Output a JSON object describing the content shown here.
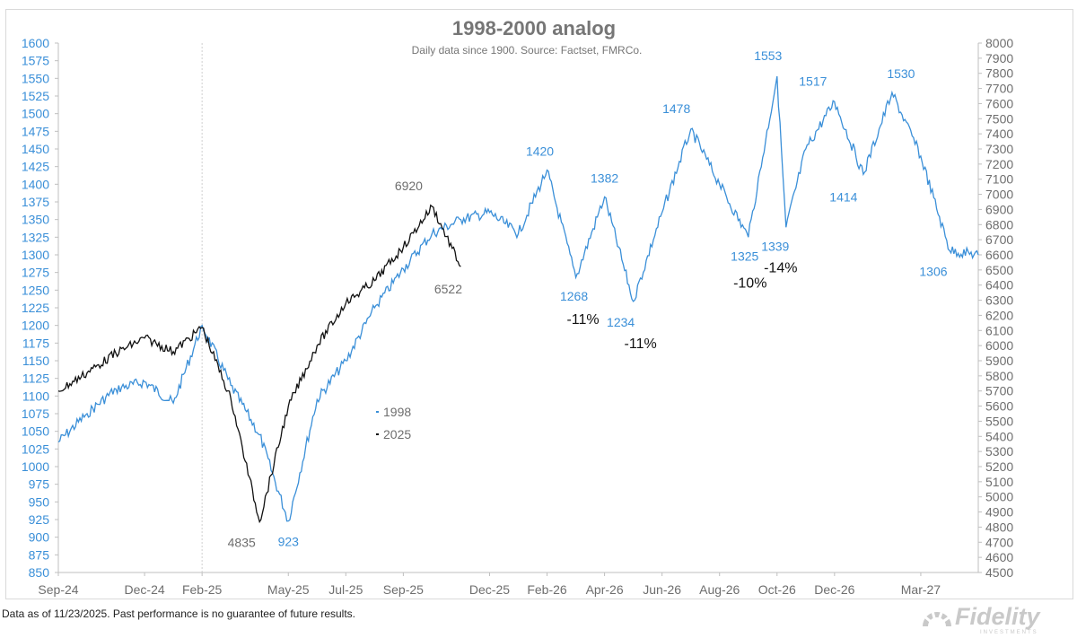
{
  "chart_data": {
    "type": "line",
    "title": "1998-2000 analog",
    "subtitle": "Daily data since 1900.  Source: Factset, FMRCo.",
    "x_ticks": [
      "Sep-24",
      "Dec-24",
      "Feb-25",
      "May-25",
      "Jul-25",
      "Sep-25",
      "Dec-25",
      "Feb-26",
      "Apr-26",
      "Jun-26",
      "Aug-26",
      "Oct-26",
      "Dec-26",
      "Mar-27"
    ],
    "x_range": [
      "Sep-24",
      "May-27"
    ],
    "y_left": {
      "range": [
        850,
        1600
      ],
      "ticks": [
        850,
        875,
        900,
        925,
        950,
        975,
        1000,
        1025,
        1050,
        1075,
        1100,
        1125,
        1150,
        1175,
        1200,
        1225,
        1250,
        1275,
        1300,
        1325,
        1350,
        1375,
        1400,
        1425,
        1450,
        1475,
        1500,
        1525,
        1550,
        1575,
        1600
      ],
      "color": "#3a8fd8"
    },
    "y_right": {
      "range": [
        4500,
        8000
      ],
      "ticks": [
        4500,
        4600,
        4700,
        4800,
        4900,
        5000,
        5100,
        5200,
        5300,
        5400,
        5500,
        5600,
        5700,
        5800,
        5900,
        6000,
        6100,
        6200,
        6300,
        6400,
        6500,
        6600,
        6700,
        6800,
        6900,
        7000,
        7100,
        7200,
        7300,
        7400,
        7500,
        7600,
        7700,
        7800,
        7900,
        8000
      ],
      "color": "#6e6e6e"
    },
    "grid": false,
    "vertical_marker": {
      "x": "Feb-25",
      "style": "dotted"
    },
    "legend": {
      "placement": "center-left",
      "entries": [
        "1998",
        "2025"
      ]
    },
    "series": [
      {
        "name": "1998",
        "axis": "left",
        "color": "#3a8fd8",
        "points": [
          [
            "Sep-24",
            1035
          ],
          [
            "Oct-24",
            1075
          ],
          [
            "Nov-24",
            1110
          ],
          [
            "Dec-24",
            1120
          ],
          [
            "Jan-25",
            1090
          ],
          [
            "Feb-25",
            1200
          ],
          [
            "Mar-25",
            1115
          ],
          [
            "Apr-25",
            1045
          ],
          [
            "May-25",
            923
          ],
          [
            "Jun-25",
            1095
          ],
          [
            "Jul-25",
            1150
          ],
          [
            "Aug-25",
            1225
          ],
          [
            "Sep-25",
            1280
          ],
          [
            "Oct-25",
            1330
          ],
          [
            "Nov-25",
            1350
          ],
          [
            "Dec-25",
            1360
          ],
          [
            "Jan-26",
            1330
          ],
          [
            "Feb-26",
            1420
          ],
          [
            "Mar-26",
            1268
          ],
          [
            "Apr-26",
            1382
          ],
          [
            "May-26",
            1234
          ],
          [
            "Jun-26",
            1360
          ],
          [
            "Jul-26",
            1478
          ],
          [
            "Aug-26",
            1400
          ],
          [
            "Sep-26",
            1325
          ],
          [
            "Oct-26",
            1553
          ],
          [
            "Oct-26b",
            1339
          ],
          [
            "Nov-26",
            1450
          ],
          [
            "Dec-26",
            1517
          ],
          [
            "Jan-27",
            1414
          ],
          [
            "Feb-27",
            1530
          ],
          [
            "Mar-27",
            1440
          ],
          [
            "Apr-27",
            1306
          ],
          [
            "May-27",
            1300
          ]
        ]
      },
      {
        "name": "2025",
        "axis": "right",
        "color": "#111111",
        "points": [
          [
            "Sep-24",
            5700
          ],
          [
            "Oct-24",
            5820
          ],
          [
            "Nov-24",
            5950
          ],
          [
            "Dec-24",
            6050
          ],
          [
            "Jan-25",
            5960
          ],
          [
            "Feb-25",
            6120
          ],
          [
            "Mar-25",
            5650
          ],
          [
            "Apr-25",
            4835
          ],
          [
            "May-25",
            5600
          ],
          [
            "Jun-25",
            6000
          ],
          [
            "Jul-25",
            6280
          ],
          [
            "Aug-25",
            6430
          ],
          [
            "Sep-25",
            6650
          ],
          [
            "Oct-25",
            6920
          ],
          [
            "Nov-25",
            6522
          ]
        ]
      }
    ],
    "annotations": [
      {
        "text": "4835",
        "x": "Apr-25",
        "y": 4835,
        "axis": "right",
        "color": "#6e6e6e"
      },
      {
        "text": "923",
        "x": "May-25",
        "y": 923,
        "axis": "left",
        "color": "#3a8fd8"
      },
      {
        "text": "6920",
        "x": "Oct-25",
        "y": 6920,
        "axis": "right",
        "color": "#6e6e6e"
      },
      {
        "text": "6522",
        "x": "Nov-25",
        "y": 6522,
        "axis": "right",
        "color": "#6e6e6e"
      },
      {
        "text": "1420",
        "x": "Feb-26",
        "y": 1420,
        "axis": "left",
        "color": "#3a8fd8"
      },
      {
        "text": "1268",
        "x": "Mar-26",
        "y": 1268,
        "axis": "left",
        "color": "#3a8fd8"
      },
      {
        "text": "-11%",
        "x": "Mar-26",
        "y": 1268,
        "axis": "left",
        "color": "#111111"
      },
      {
        "text": "1382",
        "x": "Apr-26",
        "y": 1382,
        "axis": "left",
        "color": "#3a8fd8"
      },
      {
        "text": "1234",
        "x": "May-26",
        "y": 1234,
        "axis": "left",
        "color": "#3a8fd8"
      },
      {
        "text": "-11%",
        "x": "May-26",
        "y": 1234,
        "axis": "left",
        "color": "#111111"
      },
      {
        "text": "1478",
        "x": "Jul-26",
        "y": 1478,
        "axis": "left",
        "color": "#3a8fd8"
      },
      {
        "text": "1325",
        "x": "Sep-26",
        "y": 1325,
        "axis": "left",
        "color": "#3a8fd8"
      },
      {
        "text": "-10%",
        "x": "Sep-26",
        "y": 1325,
        "axis": "left",
        "color": "#111111"
      },
      {
        "text": "1553",
        "x": "Oct-26",
        "y": 1553,
        "axis": "left",
        "color": "#3a8fd8"
      },
      {
        "text": "1339",
        "x": "Oct-26",
        "y": 1339,
        "axis": "left",
        "color": "#3a8fd8"
      },
      {
        "text": "-14%",
        "x": "Oct-26",
        "y": 1339,
        "axis": "left",
        "color": "#111111"
      },
      {
        "text": "1517",
        "x": "Dec-26",
        "y": 1517,
        "axis": "left",
        "color": "#3a8fd8"
      },
      {
        "text": "1414",
        "x": "Jan-27",
        "y": 1414,
        "axis": "left",
        "color": "#3a8fd8"
      },
      {
        "text": "1530",
        "x": "Feb-27",
        "y": 1530,
        "axis": "left",
        "color": "#3a8fd8"
      },
      {
        "text": "1306",
        "x": "Apr-27",
        "y": 1306,
        "axis": "left",
        "color": "#3a8fd8"
      }
    ]
  },
  "footer": {
    "note": "Data as of 11/23/2025. Past performance is no guarantee of future results.",
    "logo": "Fidelity",
    "logo_sub": "INVESTMENTS",
    "logo_icon": "fidelity-fan-icon"
  }
}
